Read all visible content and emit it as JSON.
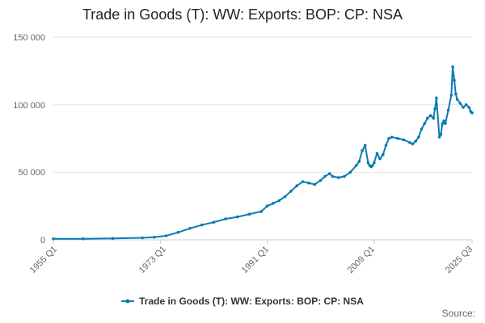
{
  "chart_data": {
    "type": "line",
    "title": "Trade in Goods (T): WW: Exports: BOP: CP: NSA",
    "xlabel": "",
    "ylabel": "",
    "x_tick_labels": [
      "1955 Q1",
      "1973 Q1",
      "1991 Q1",
      "2009 Q1",
      "2025 Q3"
    ],
    "y_tick_labels": [
      "0",
      "50 000",
      "100 000",
      "150 000"
    ],
    "ylim": [
      0,
      150000
    ],
    "grid": true,
    "legend_position": "bottom",
    "source_label": "Source:",
    "series": [
      {
        "name": "Trade in Goods (T): WW: Exports: BOP: CP: NSA",
        "color": "#0a7bb4",
        "x": [
          1955.0,
          1960.0,
          1965.0,
          1970.0,
          1972.0,
          1974.0,
          1976.0,
          1978.0,
          1980.0,
          1982.0,
          1984.0,
          1986.0,
          1988.0,
          1990.0,
          1991.0,
          1992.0,
          1993.0,
          1994.0,
          1995.0,
          1996.0,
          1997.0,
          1998.0,
          1999.0,
          2000.0,
          2000.75,
          2001.5,
          2002.0,
          2003.0,
          2004.0,
          2005.0,
          2006.0,
          2006.5,
          2007.0,
          2007.5,
          2008.0,
          2008.25,
          2008.5,
          2008.75,
          2009.0,
          2009.5,
          2010.0,
          2010.5,
          2011.0,
          2011.5,
          2012.0,
          2013.0,
          2014.0,
          2015.0,
          2015.5,
          2016.0,
          2016.5,
          2017.0,
          2017.5,
          2018.0,
          2018.5,
          2019.0,
          2019.25,
          2019.5,
          2020.0,
          2020.25,
          2020.5,
          2020.75,
          2021.0,
          2021.5,
          2022.0,
          2022.25,
          2022.5,
          2022.75,
          2023.0,
          2023.5,
          2024.0,
          2024.5,
          2025.0,
          2025.25,
          2025.5
        ],
        "values": [
          700,
          800,
          1000,
          1500,
          2000,
          3000,
          5500,
          8500,
          11000,
          13000,
          15500,
          17000,
          19000,
          21000,
          25000,
          27000,
          29000,
          32000,
          36000,
          40000,
          43000,
          42000,
          41000,
          44000,
          47000,
          49000,
          47000,
          46000,
          47000,
          50000,
          55000,
          58000,
          66000,
          70000,
          57000,
          55000,
          54000,
          55000,
          57000,
          64000,
          60000,
          63000,
          70000,
          75000,
          76000,
          75000,
          74000,
          72000,
          71000,
          73000,
          76000,
          82000,
          86000,
          90000,
          92000,
          90000,
          97000,
          105000,
          76000,
          78000,
          86000,
          88000,
          86000,
          96000,
          107000,
          128000,
          118000,
          108000,
          104000,
          101000,
          98000,
          100000,
          98000,
          95000,
          94000
        ]
      }
    ]
  }
}
